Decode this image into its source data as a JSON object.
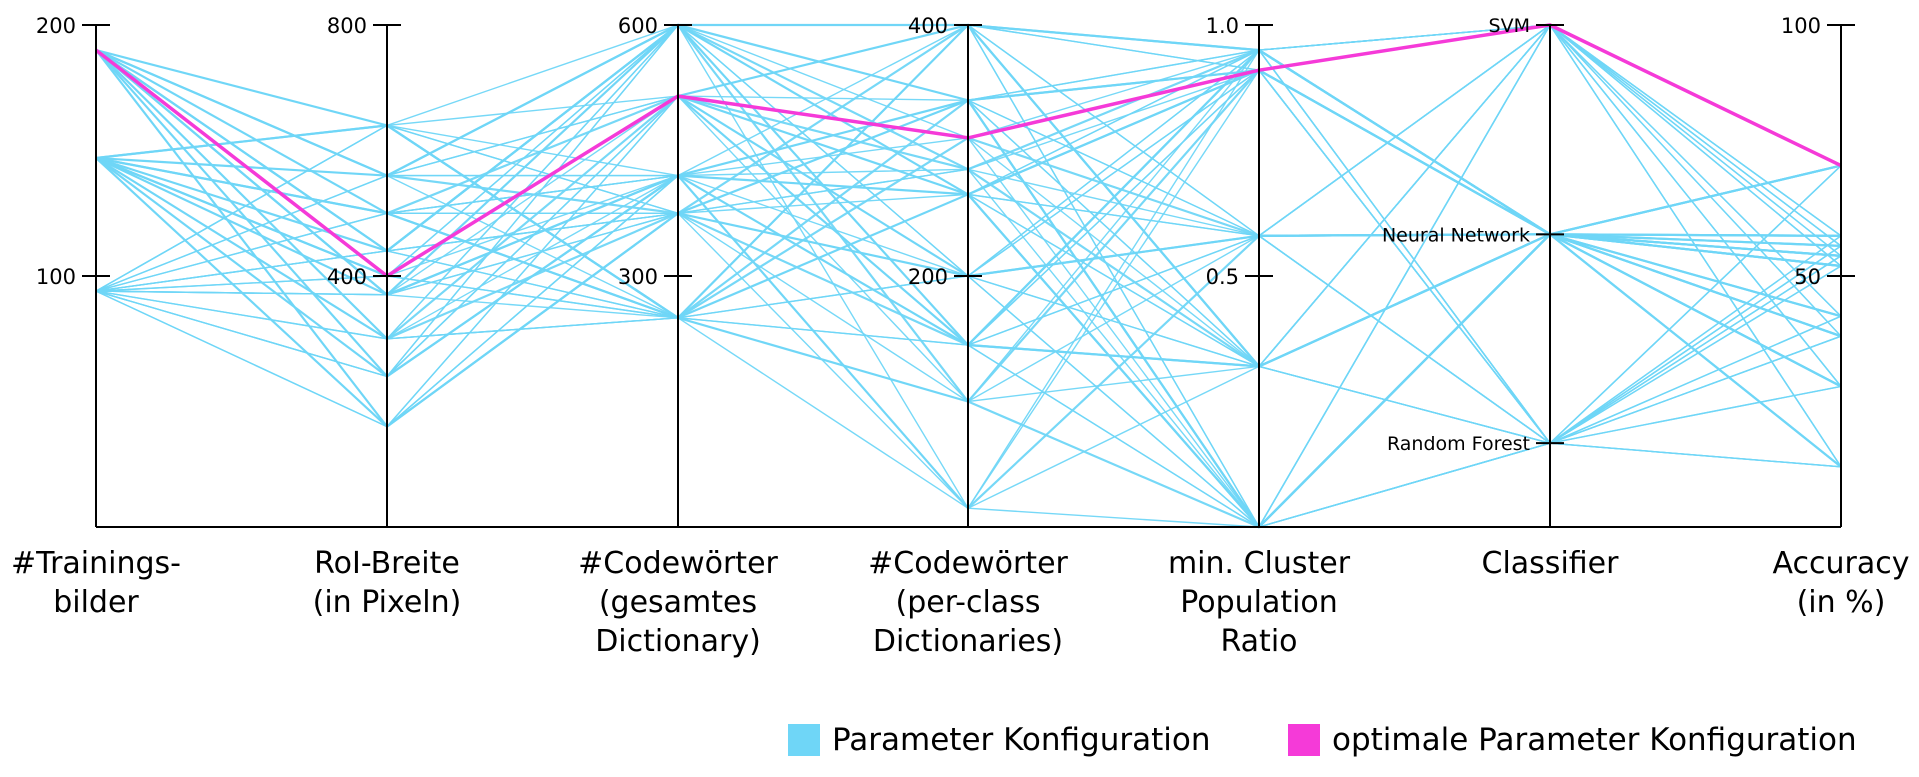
{
  "chart_data": {
    "type": "parallel-coordinates",
    "axes": [
      {
        "title_lines": [
          "#Trainings-",
          "bilder"
        ],
        "ticks": [
          "200",
          "100"
        ],
        "range": [
          0,
          200
        ],
        "tick_values": [
          200,
          100
        ]
      },
      {
        "title_lines": [
          "RoI-Breite",
          "(in Pixeln)"
        ],
        "ticks": [
          "800",
          "400"
        ],
        "range": [
          0,
          800
        ],
        "tick_values": [
          800,
          400
        ]
      },
      {
        "title_lines": [
          "#Codewörter",
          "(gesamtes",
          "Dictionary)"
        ],
        "ticks": [
          "600",
          "300"
        ],
        "range": [
          0,
          600
        ],
        "tick_values": [
          600,
          300
        ]
      },
      {
        "title_lines": [
          "#Codewörter",
          "(per-class",
          "Dictionaries)"
        ],
        "ticks": [
          "400",
          "200"
        ],
        "range": [
          0,
          400
        ],
        "tick_values": [
          400,
          200
        ]
      },
      {
        "title_lines": [
          "min. Cluster",
          "Population",
          "Ratio"
        ],
        "ticks": [
          "1.0",
          "0.5"
        ],
        "range": [
          0,
          1
        ],
        "tick_values": [
          1.0,
          0.5
        ]
      },
      {
        "title_lines": [
          "Classifier"
        ],
        "categorical": true,
        "categories": [
          "SVM",
          "Neural Network",
          "Random Forest"
        ],
        "category_values": [
          1.0,
          0.583,
          0.167
        ],
        "range": [
          0,
          1
        ]
      },
      {
        "title_lines": [
          "Accuracy",
          "(in %)"
        ],
        "ticks": [
          "100",
          "50"
        ],
        "range": [
          0,
          100
        ],
        "tick_values": [
          100,
          50
        ]
      }
    ],
    "level_values": [
      [
        190,
        147,
        94
      ],
      [
        640,
        560,
        500,
        440,
        400,
        370,
        300,
        240,
        160
      ],
      [
        600,
        515,
        420,
        375,
        250
      ],
      [
        400,
        340,
        310,
        285,
        265,
        200,
        145,
        100,
        15
      ],
      [
        0.95,
        0.91,
        0.58,
        0.32,
        0.0
      ],
      [
        1.0,
        0.583,
        0.167
      ],
      [
        72,
        70,
        68,
        60,
        58,
        56,
        54,
        52,
        50,
        48,
        46,
        42,
        38,
        28,
        12
      ]
    ],
    "configurations_note_hidden": false,
    "optimal_configuration": [
      190,
      400,
      515,
      310,
      0.91,
      1.0,
      72
    ],
    "series": [
      {
        "name": "Parameter Konfiguration",
        "color": "#6fd6f7"
      },
      {
        "name": "optimale Parameter Konfiguration",
        "color": "#f53ad8"
      }
    ],
    "legend_position": "bottom-right"
  }
}
